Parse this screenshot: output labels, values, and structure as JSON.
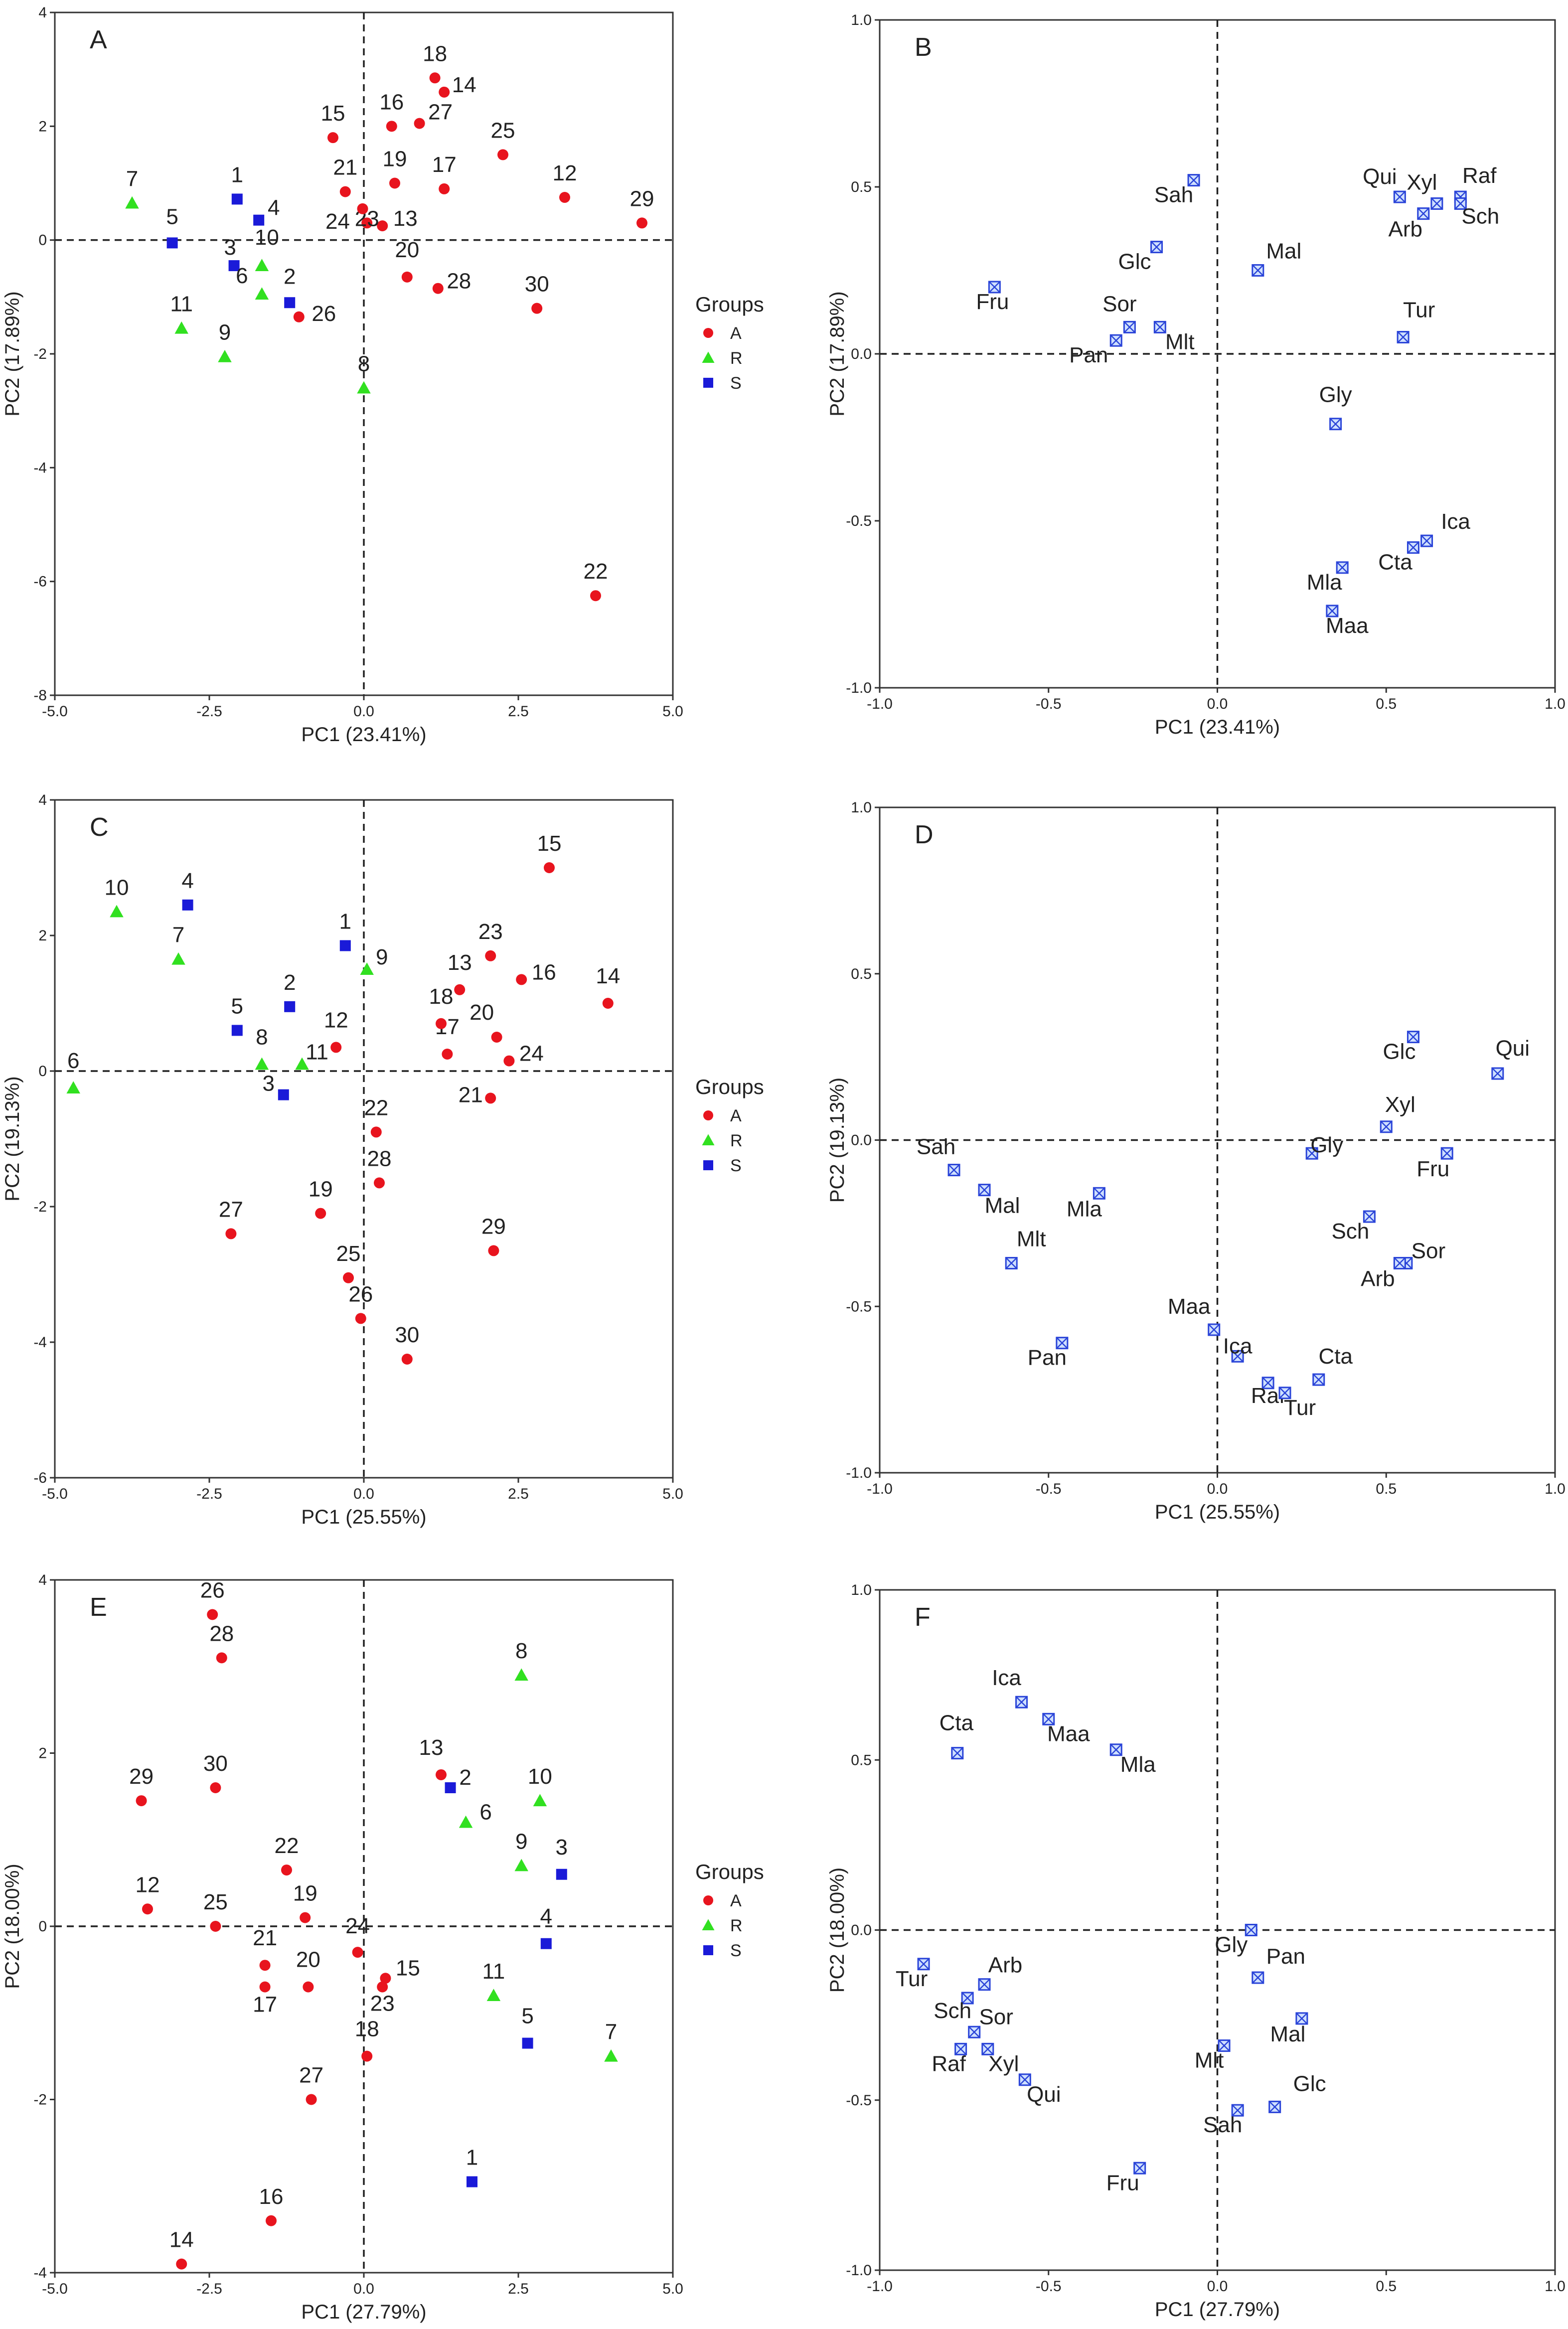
{
  "groups_legend": {
    "title": "Groups",
    "items": [
      {
        "name": "A",
        "color": "#e8141e",
        "marker": "circle"
      },
      {
        "name": "R",
        "color": "#31e020",
        "marker": "triangle"
      },
      {
        "name": "S",
        "color": "#1a1ad8",
        "marker": "square"
      }
    ]
  },
  "chart_data": [
    {
      "panel": "A",
      "type": "scatter",
      "kind": "scores",
      "xlabel": "PC1 (23.41%)",
      "ylabel": "PC2 (17.89%)",
      "xlim": [
        -5.0,
        5.0
      ],
      "ylim": [
        -8,
        4
      ],
      "xticks": [
        -5.0,
        -2.5,
        0.0,
        2.5,
        5.0
      ],
      "xtick_labels": [
        "-5.0",
        "-2.5",
        "0.0",
        "2.5",
        "5.0"
      ],
      "yticks": [
        -8,
        -6,
        -4,
        -2,
        0,
        2,
        4
      ],
      "ytick_labels": [
        "-8",
        "-6",
        "-4",
        "-2",
        "0",
        "2",
        "4"
      ],
      "legend": true,
      "points": [
        {
          "label": "1",
          "group": "S",
          "x": -2.05,
          "y": 0.72
        },
        {
          "label": "2",
          "group": "S",
          "x": -1.2,
          "y": -1.1
        },
        {
          "label": "3",
          "group": "S",
          "x": -2.1,
          "y": -0.45
        },
        {
          "label": "4",
          "group": "S",
          "x": -1.7,
          "y": 0.35
        },
        {
          "label": "5",
          "group": "S",
          "x": -3.1,
          "y": -0.05
        },
        {
          "label": "6",
          "group": "R",
          "x": -1.65,
          "y": -0.95
        },
        {
          "label": "7",
          "group": "R",
          "x": -3.75,
          "y": 0.65
        },
        {
          "label": "8",
          "group": "R",
          "x": 0.0,
          "y": -2.6
        },
        {
          "label": "9",
          "group": "R",
          "x": -2.25,
          "y": -2.05
        },
        {
          "label": "10",
          "group": "R",
          "x": -1.65,
          "y": -0.45
        },
        {
          "label": "11",
          "group": "R",
          "x": -2.95,
          "y": -1.55
        },
        {
          "label": "12",
          "group": "A",
          "x": 3.25,
          "y": 0.75
        },
        {
          "label": "13",
          "group": "A",
          "x": 0.3,
          "y": 0.25
        },
        {
          "label": "14",
          "group": "A",
          "x": 1.3,
          "y": 2.6
        },
        {
          "label": "15",
          "group": "A",
          "x": -0.5,
          "y": 1.8
        },
        {
          "label": "16",
          "group": "A",
          "x": 0.45,
          "y": 2.0
        },
        {
          "label": "17",
          "group": "A",
          "x": 1.3,
          "y": 0.9
        },
        {
          "label": "18",
          "group": "A",
          "x": 1.15,
          "y": 2.85
        },
        {
          "label": "19",
          "group": "A",
          "x": 0.5,
          "y": 1.0
        },
        {
          "label": "20",
          "group": "A",
          "x": 0.7,
          "y": -0.65
        },
        {
          "label": "21",
          "group": "A",
          "x": -0.3,
          "y": 0.85
        },
        {
          "label": "22",
          "group": "A",
          "x": 3.75,
          "y": -6.25
        },
        {
          "label": "23",
          "group": "A",
          "x": 0.05,
          "y": 0.3
        },
        {
          "label": "24",
          "group": "A",
          "x": -0.02,
          "y": 0.55
        },
        {
          "label": "25",
          "group": "A",
          "x": 2.25,
          "y": 1.5
        },
        {
          "label": "26",
          "group": "A",
          "x": -1.05,
          "y": -1.35
        },
        {
          "label": "27",
          "group": "A",
          "x": 0.9,
          "y": 2.05
        },
        {
          "label": "28",
          "group": "A",
          "x": 1.2,
          "y": -0.85
        },
        {
          "label": "29",
          "group": "A",
          "x": 4.5,
          "y": 0.3
        },
        {
          "label": "30",
          "group": "A",
          "x": 2.8,
          "y": -1.2
        }
      ]
    },
    {
      "panel": "B",
      "type": "scatter",
      "kind": "loadings",
      "xlabel": "PC1 (23.41%)",
      "ylabel": "PC2 (17.89%)",
      "xlim": [
        -1.0,
        1.0
      ],
      "ylim": [
        -1.0,
        1.0
      ],
      "xticks": [
        -1.0,
        -0.5,
        0.0,
        0.5,
        1.0
      ],
      "xtick_labels": [
        "-1.0",
        "-0.5",
        "0.0",
        "0.5",
        "1.0"
      ],
      "yticks": [
        -1.0,
        -0.5,
        0.0,
        0.5,
        1.0
      ],
      "ytick_labels": [
        "-1.0",
        "-0.5",
        "0.0",
        "0.5",
        "1.0"
      ],
      "legend": false,
      "points": [
        {
          "label": "Sah",
          "x": -0.07,
          "y": 0.52
        },
        {
          "label": "Glc",
          "x": -0.18,
          "y": 0.32
        },
        {
          "label": "Fru",
          "x": -0.66,
          "y": 0.2
        },
        {
          "label": "Sor",
          "x": -0.26,
          "y": 0.08
        },
        {
          "label": "Mlt",
          "x": -0.17,
          "y": 0.08
        },
        {
          "label": "Pan",
          "x": -0.3,
          "y": 0.04
        },
        {
          "label": "Mal",
          "x": 0.12,
          "y": 0.25
        },
        {
          "label": "Qui",
          "x": 0.54,
          "y": 0.47
        },
        {
          "label": "Xyl",
          "x": 0.65,
          "y": 0.45
        },
        {
          "label": "Raf",
          "x": 0.72,
          "y": 0.47
        },
        {
          "label": "Arb",
          "x": 0.61,
          "y": 0.42
        },
        {
          "label": "Sch",
          "x": 0.72,
          "y": 0.45
        },
        {
          "label": "Tur",
          "x": 0.55,
          "y": 0.05
        },
        {
          "label": "Gly",
          "x": 0.35,
          "y": -0.21
        },
        {
          "label": "Ica",
          "x": 0.62,
          "y": -0.56
        },
        {
          "label": "Cta",
          "x": 0.58,
          "y": -0.58
        },
        {
          "label": "Mla",
          "x": 0.37,
          "y": -0.64
        },
        {
          "label": "Maa",
          "x": 0.34,
          "y": -0.77
        }
      ]
    },
    {
      "panel": "C",
      "type": "scatter",
      "kind": "scores",
      "xlabel": "PC1 (25.55%)",
      "ylabel": "PC2 (19.13%)",
      "xlim": [
        -5.0,
        5.0
      ],
      "ylim": [
        -6,
        4
      ],
      "xticks": [
        -5.0,
        -2.5,
        0.0,
        2.5,
        5.0
      ],
      "xtick_labels": [
        "-5.0",
        "-2.5",
        "0.0",
        "2.5",
        "5.0"
      ],
      "yticks": [
        -6,
        -4,
        -2,
        0,
        2,
        4
      ],
      "ytick_labels": [
        "-6",
        "-4",
        "-2",
        "0",
        "2",
        "4"
      ],
      "legend": true,
      "points": [
        {
          "label": "1",
          "group": "S",
          "x": -0.3,
          "y": 1.85
        },
        {
          "label": "2",
          "group": "S",
          "x": -1.2,
          "y": 0.95
        },
        {
          "label": "3",
          "group": "S",
          "x": -1.3,
          "y": -0.35
        },
        {
          "label": "4",
          "group": "S",
          "x": -2.85,
          "y": 2.45
        },
        {
          "label": "5",
          "group": "S",
          "x": -2.05,
          "y": 0.6
        },
        {
          "label": "6",
          "group": "R",
          "x": -4.7,
          "y": -0.25
        },
        {
          "label": "7",
          "group": "R",
          "x": -3.0,
          "y": 1.65
        },
        {
          "label": "8",
          "group": "R",
          "x": -1.65,
          "y": 0.1
        },
        {
          "label": "9",
          "group": "R",
          "x": 0.05,
          "y": 1.5
        },
        {
          "label": "10",
          "group": "R",
          "x": -4.0,
          "y": 2.35
        },
        {
          "label": "11",
          "group": "R",
          "x": -1.0,
          "y": 0.1
        },
        {
          "label": "12",
          "group": "A",
          "x": -0.45,
          "y": 0.35
        },
        {
          "label": "13",
          "group": "A",
          "x": 1.55,
          "y": 1.2
        },
        {
          "label": "14",
          "group": "A",
          "x": 3.95,
          "y": 1.0
        },
        {
          "label": "15",
          "group": "A",
          "x": 3.0,
          "y": 3.0
        },
        {
          "label": "16",
          "group": "A",
          "x": 2.55,
          "y": 1.35
        },
        {
          "label": "17",
          "group": "A",
          "x": 1.35,
          "y": 0.25
        },
        {
          "label": "18",
          "group": "A",
          "x": 1.25,
          "y": 0.7
        },
        {
          "label": "19",
          "group": "A",
          "x": -0.7,
          "y": -2.1
        },
        {
          "label": "20",
          "group": "A",
          "x": 2.15,
          "y": 0.5
        },
        {
          "label": "21",
          "group": "A",
          "x": 2.05,
          "y": -0.4
        },
        {
          "label": "22",
          "group": "A",
          "x": 0.2,
          "y": -0.9
        },
        {
          "label": "23",
          "group": "A",
          "x": 2.05,
          "y": 1.7
        },
        {
          "label": "24",
          "group": "A",
          "x": 2.35,
          "y": 0.15
        },
        {
          "label": "25",
          "group": "A",
          "x": -0.25,
          "y": -3.05
        },
        {
          "label": "26",
          "group": "A",
          "x": -0.05,
          "y": -3.65
        },
        {
          "label": "27",
          "group": "A",
          "x": -2.15,
          "y": -2.4
        },
        {
          "label": "28",
          "group": "A",
          "x": 0.25,
          "y": -1.65
        },
        {
          "label": "29",
          "group": "A",
          "x": 2.1,
          "y": -2.65
        },
        {
          "label": "30",
          "group": "A",
          "x": 0.7,
          "y": -4.25
        }
      ]
    },
    {
      "panel": "D",
      "type": "scatter",
      "kind": "loadings",
      "xlabel": "PC1 (25.55%)",
      "ylabel": "PC2 (19.13%)",
      "xlim": [
        -1.0,
        1.0
      ],
      "ylim": [
        -1.0,
        1.0
      ],
      "xticks": [
        -1.0,
        -0.5,
        0.0,
        0.5,
        1.0
      ],
      "xtick_labels": [
        "-1.0",
        "-0.5",
        "0.0",
        "0.5",
        "1.0"
      ],
      "yticks": [
        -1.0,
        -0.5,
        0.0,
        0.5,
        1.0
      ],
      "ytick_labels": [
        "-1.0",
        "-0.5",
        "0.0",
        "0.5",
        "1.0"
      ],
      "legend": false,
      "points": [
        {
          "label": "Glc",
          "x": 0.58,
          "y": 0.31
        },
        {
          "label": "Qui",
          "x": 0.83,
          "y": 0.2
        },
        {
          "label": "Xyl",
          "x": 0.5,
          "y": 0.04
        },
        {
          "label": "Gly",
          "x": 0.28,
          "y": -0.04
        },
        {
          "label": "Fru",
          "x": 0.68,
          "y": -0.04
        },
        {
          "label": "Sch",
          "x": 0.45,
          "y": -0.23
        },
        {
          "label": "Sor",
          "x": 0.56,
          "y": -0.37
        },
        {
          "label": "Arb",
          "x": 0.54,
          "y": -0.37
        },
        {
          "label": "Sah",
          "x": -0.78,
          "y": -0.09
        },
        {
          "label": "Mal",
          "x": -0.69,
          "y": -0.15
        },
        {
          "label": "Mla",
          "x": -0.35,
          "y": -0.16
        },
        {
          "label": "Mlt",
          "x": -0.61,
          "y": -0.37
        },
        {
          "label": "Pan",
          "x": -0.46,
          "y": -0.61
        },
        {
          "label": "Maa",
          "x": -0.01,
          "y": -0.57
        },
        {
          "label": "Ica",
          "x": 0.06,
          "y": -0.65
        },
        {
          "label": "Raf",
          "x": 0.15,
          "y": -0.73
        },
        {
          "label": "Tur",
          "x": 0.2,
          "y": -0.76
        },
        {
          "label": "Cta",
          "x": 0.3,
          "y": -0.72
        }
      ]
    },
    {
      "panel": "E",
      "type": "scatter",
      "kind": "scores",
      "xlabel": "PC1 (27.79%)",
      "ylabel": "PC2 (18.00%)",
      "xlim": [
        -5.0,
        5.0
      ],
      "ylim": [
        -4,
        4
      ],
      "xticks": [
        -5.0,
        -2.5,
        0.0,
        2.5,
        5.0
      ],
      "xtick_labels": [
        "-5.0",
        "-2.5",
        "0.0",
        "2.5",
        "5.0"
      ],
      "yticks": [
        -4,
        -2,
        0,
        2,
        4
      ],
      "ytick_labels": [
        "-4",
        "-2",
        "0",
        "2",
        "4"
      ],
      "legend": true,
      "points": [
        {
          "label": "1",
          "group": "S",
          "x": 1.75,
          "y": -2.95
        },
        {
          "label": "2",
          "group": "S",
          "x": 1.4,
          "y": 1.6
        },
        {
          "label": "3",
          "group": "S",
          "x": 3.2,
          "y": 0.6
        },
        {
          "label": "4",
          "group": "S",
          "x": 2.95,
          "y": -0.2
        },
        {
          "label": "5",
          "group": "S",
          "x": 2.65,
          "y": -1.35
        },
        {
          "label": "6",
          "group": "R",
          "x": 1.65,
          "y": 1.2
        },
        {
          "label": "7",
          "group": "R",
          "x": 4.0,
          "y": -1.5
        },
        {
          "label": "8",
          "group": "R",
          "x": 2.55,
          "y": 2.9
        },
        {
          "label": "9",
          "group": "R",
          "x": 2.55,
          "y": 0.7
        },
        {
          "label": "10",
          "group": "R",
          "x": 2.85,
          "y": 1.45
        },
        {
          "label": "11",
          "group": "R",
          "x": 2.1,
          "y": -0.8
        },
        {
          "label": "12",
          "group": "A",
          "x": -3.5,
          "y": 0.2
        },
        {
          "label": "13",
          "group": "A",
          "x": 1.25,
          "y": 1.75
        },
        {
          "label": "14",
          "group": "A",
          "x": -2.95,
          "y": -3.9
        },
        {
          "label": "15",
          "group": "A",
          "x": 0.35,
          "y": -0.6
        },
        {
          "label": "16",
          "group": "A",
          "x": -1.5,
          "y": -3.4
        },
        {
          "label": "17",
          "group": "A",
          "x": -1.6,
          "y": -0.7
        },
        {
          "label": "18",
          "group": "A",
          "x": 0.05,
          "y": -1.5
        },
        {
          "label": "19",
          "group": "A",
          "x": -0.95,
          "y": 0.1
        },
        {
          "label": "20",
          "group": "A",
          "x": -0.9,
          "y": -0.7
        },
        {
          "label": "21",
          "group": "A",
          "x": -1.6,
          "y": -0.45
        },
        {
          "label": "22",
          "group": "A",
          "x": -1.25,
          "y": 0.65
        },
        {
          "label": "23",
          "group": "A",
          "x": 0.3,
          "y": -0.7
        },
        {
          "label": "24",
          "group": "A",
          "x": -0.1,
          "y": -0.3
        },
        {
          "label": "25",
          "group": "A",
          "x": -2.4,
          "y": 0.0
        },
        {
          "label": "26",
          "group": "A",
          "x": -2.45,
          "y": 3.6
        },
        {
          "label": "27",
          "group": "A",
          "x": -0.85,
          "y": -2.0
        },
        {
          "label": "28",
          "group": "A",
          "x": -2.3,
          "y": 3.1
        },
        {
          "label": "29",
          "group": "A",
          "x": -3.6,
          "y": 1.45
        },
        {
          "label": "30",
          "group": "A",
          "x": -2.4,
          "y": 1.6
        }
      ]
    },
    {
      "panel": "F",
      "type": "scatter",
      "kind": "loadings",
      "xlabel": "PC1 (27.79%)",
      "ylabel": "PC2 (18.00%)",
      "xlim": [
        -1.0,
        1.0
      ],
      "ylim": [
        -1.0,
        1.0
      ],
      "xticks": [
        -1.0,
        -0.5,
        0.0,
        0.5,
        1.0
      ],
      "xtick_labels": [
        "-1.0",
        "-0.5",
        "0.0",
        "0.5",
        "1.0"
      ],
      "yticks": [
        -1.0,
        -0.5,
        0.0,
        0.5,
        1.0
      ],
      "ytick_labels": [
        "-1.0",
        "-0.5",
        "0.0",
        "0.5",
        "1.0"
      ],
      "legend": false,
      "points": [
        {
          "label": "Ica",
          "x": -0.58,
          "y": 0.67
        },
        {
          "label": "Maa",
          "x": -0.5,
          "y": 0.62
        },
        {
          "label": "Cta",
          "x": -0.77,
          "y": 0.52
        },
        {
          "label": "Mla",
          "x": -0.3,
          "y": 0.53
        },
        {
          "label": "Tur",
          "x": -0.87,
          "y": -0.1
        },
        {
          "label": "Arb",
          "x": -0.69,
          "y": -0.16
        },
        {
          "label": "Sch",
          "x": -0.74,
          "y": -0.2
        },
        {
          "label": "Sor",
          "x": -0.72,
          "y": -0.3
        },
        {
          "label": "Raf",
          "x": -0.76,
          "y": -0.35
        },
        {
          "label": "Xyl",
          "x": -0.68,
          "y": -0.35
        },
        {
          "label": "Qui",
          "x": -0.57,
          "y": -0.44
        },
        {
          "label": "Gly",
          "x": 0.1,
          "y": 0.0
        },
        {
          "label": "Pan",
          "x": 0.12,
          "y": -0.14
        },
        {
          "label": "Mal",
          "x": 0.25,
          "y": -0.26
        },
        {
          "label": "Mlt",
          "x": 0.02,
          "y": -0.34
        },
        {
          "label": "Glc",
          "x": 0.17,
          "y": -0.52
        },
        {
          "label": "Sah",
          "x": 0.06,
          "y": -0.53
        },
        {
          "label": "Fru",
          "x": -0.23,
          "y": -0.7
        }
      ]
    }
  ]
}
